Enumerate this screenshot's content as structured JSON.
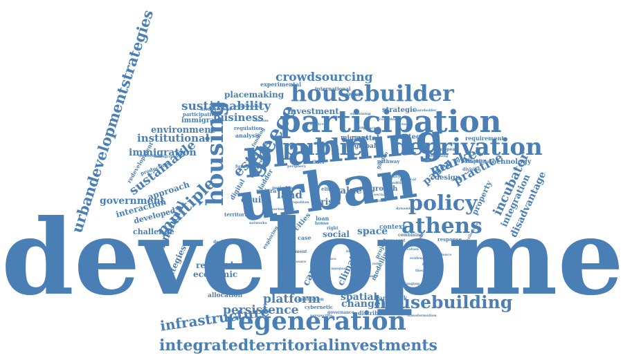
{
  "palette": {
    "word_color": "#4a7fb5",
    "background": "#ffffff"
  },
  "words": {
    "development": "development",
    "planning": "planning",
    "urban": "urban",
    "participation": "participation",
    "housebuilder": "housebuilder",
    "deprivation": "deprivation",
    "public": "public",
    "regeneration": "regeneration",
    "integratedterritorialinvestments": "integratedterritorialinvestments",
    "housebuilding": "housebuilding",
    "athens": "athens",
    "policy": "policy",
    "housing": "housing",
    "greece": "greece",
    "multiple": "multiple",
    "urbandevelopmentstrategies": "urbandevelopmentstrategies",
    "crowdsourcing": "crowdsourcing",
    "sustainability": "sustainability",
    "business": "business",
    "infrastructure": "infrastructure",
    "platform": "platform",
    "persistence": "persistence",
    "market": "market",
    "institutional": "institutional",
    "sustainable": "sustainable",
    "government": "government",
    "financial": "financial",
    "estate": "estate",
    "land": "land",
    "space": "space",
    "change": "change",
    "investment": "investment",
    "environment": "environment",
    "immigration": "immigration",
    "placemaking": "placemaking",
    "experimental": "experimental",
    "practice": "practice",
    "paper": "paper",
    "incubator": "incubator",
    "integration": "integration",
    "disadvantage": "disadvantage",
    "property": "property",
    "design": "design",
    "technology": "technology",
    "provision": "provision",
    "requirement": "requirement",
    "strategy": "strategy",
    "strategic": "strategic",
    "coastal": "coastal",
    "global": "global",
    "crisis": "crisis",
    "value": "value",
    "growth": "growth",
    "equity": "equity",
    "social": "social",
    "research": "research",
    "economic": "economic",
    "strategies": "strategies",
    "spatial": "spatial",
    "capture": "capture",
    "climate": "climate",
    "shared": "shared",
    "sector": "sector",
    "interaction": "interaction",
    "developed": "developed",
    "challenge": "challenge",
    "approach": "approach",
    "immigrant": "immigrant",
    "participative": "participative",
    "redevelopment": "redevelopment",
    "production": "production",
    "digital": "digital",
    "ladder": "ladder",
    "vendee": "vendee",
    "territorial": "territorial",
    "riviera": "riviera",
    "loan": "loan",
    "cities": "cities",
    "context": "context",
    "framework": "framework",
    "allocation": "allocation",
    "distribution": "distribution",
    "modelling": "modelling",
    "project": "project",
    "migrant": "migrant",
    "builder": "builder",
    "pathway": "pathway",
    "international": "international",
    "agency": "agency",
    "regulation": "regulation",
    "functional": "functional",
    "analysis": "analysis",
    "response": "response",
    "cybernetic": "cybernetic",
    "governance": "governance",
    "case": "case",
    "elite": "elite",
    "period": "period",
    "area": "area",
    "house": "house",
    "right": "right",
    "garden": "garden",
    "funding": "funding",
    "arrangement": "arrangement",
    "programming": "programming",
    "examining": "examining",
    "designing": "designing",
    "european": "european",
    "adaptation": "adaptation",
    "division": "division",
    "quality": "quality",
    "exploring": "exploring",
    "combining": "combining",
    "engagement": "engagement",
    "transformation": "transformation",
    "application": "application",
    "present": "present",
    "perspective": "perspective",
    "deepening": "deepening",
    "shareholder": "shareholder",
    "technologies": "technologies",
    "demographic": "demographic",
    "periphery": "periphery",
    "principle": "principle",
    "political": "political",
    "conditions": "conditions",
    "dynamics": "dynamics",
    "local": "local",
    "role": "role",
    "wave": "wave",
    "profit": "profit",
    "finance": "finance",
    "experience": "experience",
    "reallocation": "reallocation",
    "innovation": "innovation",
    "evidence": "evidence",
    "heritage": "heritage",
    "pressure": "pressure",
    "unequal": "unequal",
    "theory": "theory",
    "networks": "networks",
    "partnership": "partnership",
    "metropolitan": "metropolitan",
    "tourism": "tourism",
    "coastline": "coastline",
    "tool": "tool",
    "services": "services",
    "changing": "changing",
    "urbanisation": "urbanisation",
    "social-mix": "social-mix",
    "impact": "impact",
    "small": "small"
  }
}
